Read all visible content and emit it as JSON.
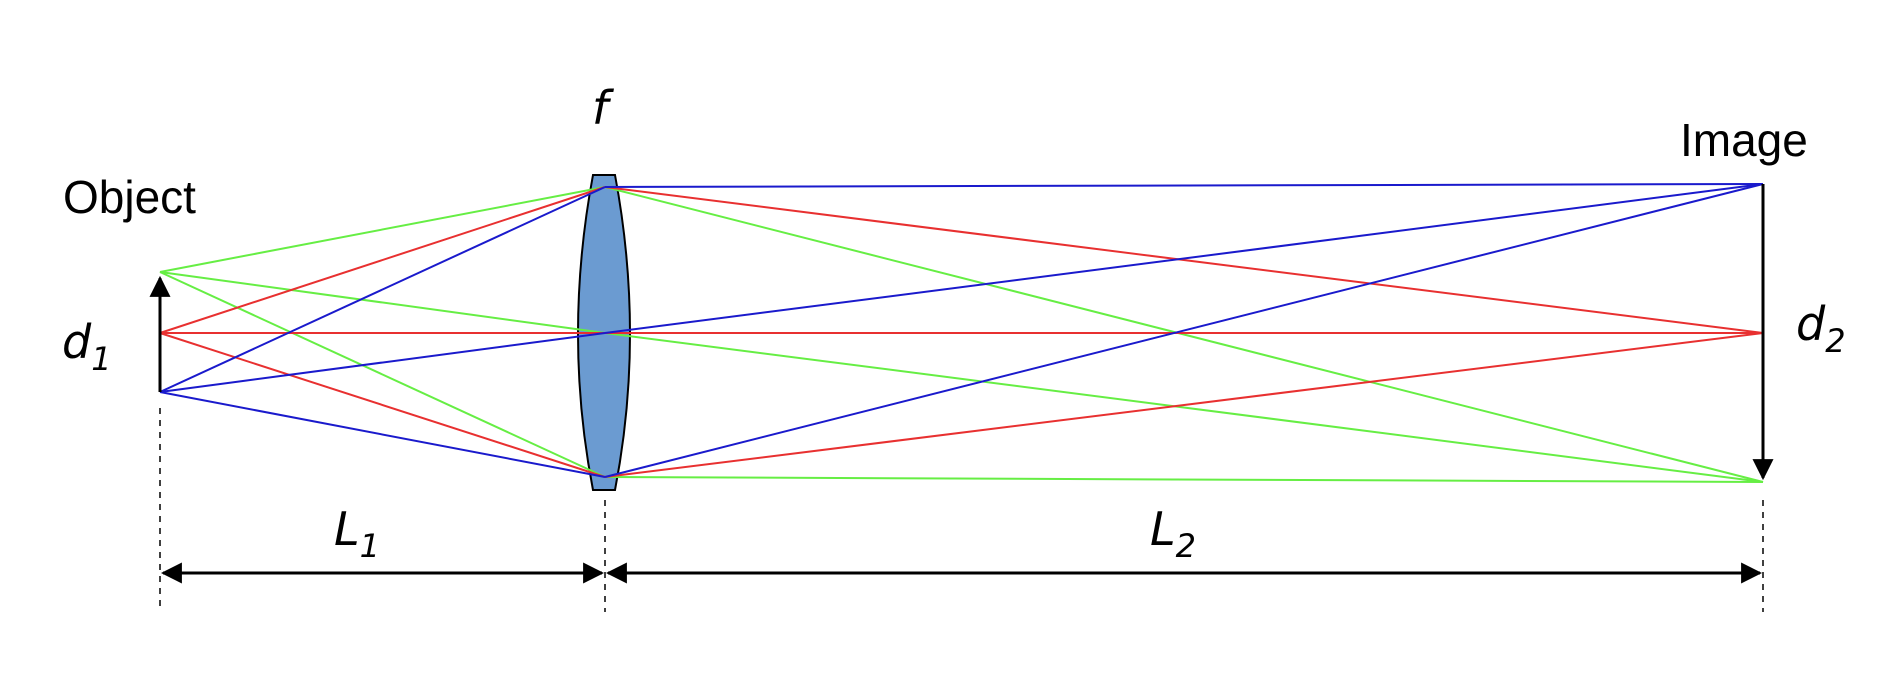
{
  "labels": {
    "object": "Object",
    "image": "Image",
    "focal": "f",
    "d1_main": "d",
    "d1_sub": "1",
    "d2_main": "d",
    "d2_sub": "2",
    "L1_main": "L",
    "L1_sub": "1",
    "L2_main": "L",
    "L2_sub": "2"
  },
  "colors": {
    "ray_top": "#66ee44",
    "ray_axis": "#e83030",
    "ray_bottom": "#1a1acc",
    "lens_fill": "#6b9bd1",
    "arrow": "#000000"
  }
}
